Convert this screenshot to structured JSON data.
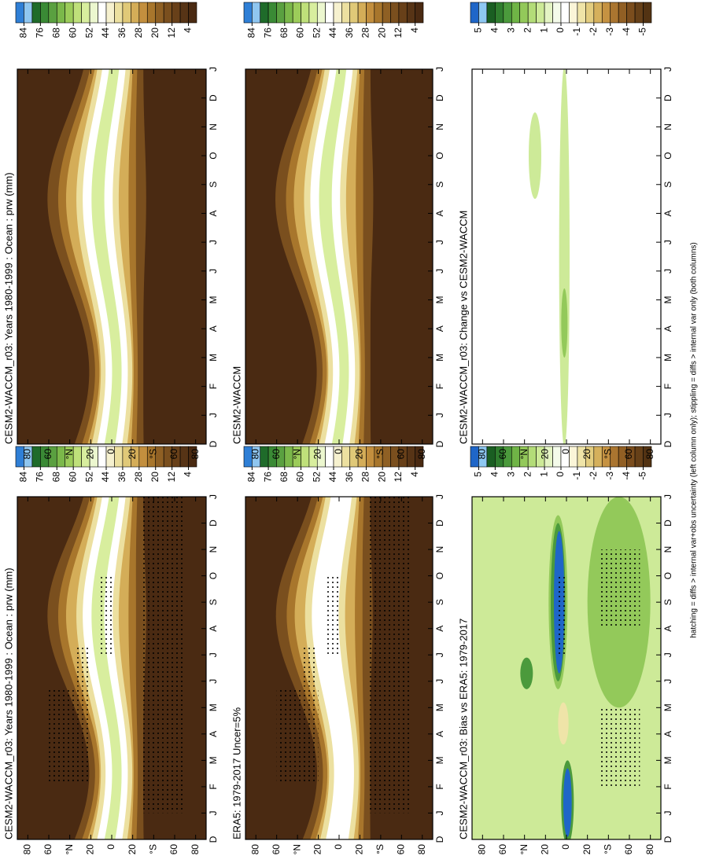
{
  "chart_data": [
    {
      "type": "contour",
      "title": "CESM2-WACCM_r03: Years 1980-1999 : Ocean : prw (mm)",
      "x": [
        "D",
        "J",
        "F",
        "M",
        "A",
        "M",
        "J",
        "J",
        "A",
        "S",
        "O",
        "N",
        "D",
        "J"
      ],
      "ylim": [
        90,
        -90
      ],
      "yticks": [
        80,
        60,
        {
          "value": 40,
          "label": "°N"
        },
        20,
        0,
        {
          "value": -20,
          "label": "20"
        },
        {
          "value": -40,
          "label": "°S"
        },
        {
          "value": -60,
          "label": "60"
        },
        {
          "value": -80,
          "label": "80"
        }
      ],
      "colorbar": {
        "clim": [
          88,
          0
        ],
        "ticks": [
          84,
          76,
          68,
          60,
          52,
          44,
          36,
          28,
          20,
          12,
          4
        ],
        "colors": [
          "#2f7fd6",
          "#8fc6f0",
          "#1f6b2a",
          "#3a8a35",
          "#5aa040",
          "#7bb84a",
          "#9ccc5a",
          "#bfe07a",
          "#d8ee9e",
          "#ecf7cf",
          "#ffffff",
          "#f6f1cf",
          "#ece0a0",
          "#e0c978",
          "#d4ad58",
          "#c38f3e",
          "#a8762c",
          "#8f6024",
          "#7a4f1e",
          "#684019",
          "#573416",
          "#4a2a12"
        ]
      }
    },
    {
      "type": "contour",
      "title": "CESM2-WACCM_r03: Years 1980-1999 : Ocean : prw (mm)",
      "x": [
        "D",
        "J",
        "F",
        "M",
        "A",
        "M",
        "J",
        "J",
        "A",
        "S",
        "O",
        "N",
        "D",
        "J"
      ],
      "ylim": [
        90,
        -90
      ],
      "yticks": [
        80,
        60,
        {
          "value": 40,
          "label": "°N"
        },
        20,
        0,
        {
          "value": -20,
          "label": "20"
        },
        {
          "value": -40,
          "label": "°S"
        },
        {
          "value": -60,
          "label": "60"
        },
        {
          "value": -80,
          "label": "80"
        }
      ],
      "colorbar": {
        "clim": [
          88,
          0
        ],
        "ticks": [
          84,
          76,
          68,
          60,
          52,
          44,
          36,
          28,
          20,
          12,
          4
        ],
        "colors": [
          "#2f7fd6",
          "#8fc6f0",
          "#1f6b2a",
          "#3a8a35",
          "#5aa040",
          "#7bb84a",
          "#9ccc5a",
          "#bfe07a",
          "#d8ee9e",
          "#ecf7cf",
          "#ffffff",
          "#f6f1cf",
          "#ece0a0",
          "#e0c978",
          "#d4ad58",
          "#c38f3e",
          "#a8762c",
          "#8f6024",
          "#7a4f1e",
          "#684019",
          "#573416",
          "#4a2a12"
        ]
      }
    },
    {
      "type": "contour",
      "title": "ERA5: 1979-2017 Uncer=5%",
      "x": [
        "D",
        "J",
        "F",
        "M",
        "A",
        "M",
        "J",
        "J",
        "A",
        "S",
        "O",
        "N",
        "D",
        "J"
      ],
      "ylim": [
        90,
        -90
      ],
      "yticks": [
        80,
        60,
        {
          "value": 40,
          "label": "°N"
        },
        20,
        0,
        {
          "value": -20,
          "label": "20"
        },
        {
          "value": -40,
          "label": "°S"
        },
        {
          "value": -60,
          "label": "60"
        },
        {
          "value": -80,
          "label": "80"
        }
      ],
      "colorbar": {
        "clim": [
          88,
          0
        ],
        "ticks": [
          84,
          76,
          68,
          60,
          52,
          44,
          36,
          28,
          20,
          12,
          4
        ],
        "colors": [
          "#2f7fd6",
          "#8fc6f0",
          "#1f6b2a",
          "#3a8a35",
          "#5aa040",
          "#7bb84a",
          "#9ccc5a",
          "#bfe07a",
          "#d8ee9e",
          "#ecf7cf",
          "#ffffff",
          "#f6f1cf",
          "#ece0a0",
          "#e0c978",
          "#d4ad58",
          "#c38f3e",
          "#a8762c",
          "#8f6024",
          "#7a4f1e",
          "#684019",
          "#573416",
          "#4a2a12"
        ]
      }
    },
    {
      "type": "contour",
      "title": "CESM2-WACCM",
      "x": [
        "D",
        "J",
        "F",
        "M",
        "A",
        "M",
        "J",
        "J",
        "A",
        "S",
        "O",
        "N",
        "D",
        "J"
      ],
      "ylim": [
        90,
        -90
      ],
      "yticks": [
        80,
        60,
        {
          "value": 40,
          "label": "°N"
        },
        20,
        0,
        {
          "value": -20,
          "label": "20"
        },
        {
          "value": -40,
          "label": "°S"
        },
        {
          "value": -60,
          "label": "60"
        },
        {
          "value": -80,
          "label": "80"
        }
      ],
      "colorbar": {
        "clim": [
          88,
          0
        ],
        "ticks": [
          84,
          76,
          68,
          60,
          52,
          44,
          36,
          28,
          20,
          12,
          4
        ],
        "colors": [
          "#2f7fd6",
          "#8fc6f0",
          "#1f6b2a",
          "#3a8a35",
          "#5aa040",
          "#7bb84a",
          "#9ccc5a",
          "#bfe07a",
          "#d8ee9e",
          "#ecf7cf",
          "#ffffff",
          "#f6f1cf",
          "#ece0a0",
          "#e0c978",
          "#d4ad58",
          "#c38f3e",
          "#a8762c",
          "#8f6024",
          "#7a4f1e",
          "#684019",
          "#573416",
          "#4a2a12"
        ]
      }
    },
    {
      "type": "contour",
      "title": "CESM2-WACCM_r03: Bias vs ERA5: 1979-2017",
      "x": [
        "D",
        "J",
        "F",
        "M",
        "A",
        "M",
        "J",
        "J",
        "A",
        "S",
        "O",
        "N",
        "D",
        "J"
      ],
      "ylim": [
        90,
        -90
      ],
      "yticks": [
        80,
        60,
        {
          "value": 40,
          "label": "°N"
        },
        20,
        0,
        {
          "value": -20,
          "label": "20"
        },
        {
          "value": -40,
          "label": "°S"
        },
        {
          "value": -60,
          "label": "60"
        },
        {
          "value": -80,
          "label": "80"
        }
      ],
      "colorbar": {
        "clim": [
          5.5,
          -5.5
        ],
        "ticks": [
          5,
          4,
          3,
          2,
          1,
          0,
          -1,
          -2,
          -3,
          -4,
          -5
        ],
        "colors": [
          "#1f66c8",
          "#8ec8f2",
          "#1a5e22",
          "#2f7d2e",
          "#4b9a3c",
          "#6fb446",
          "#93c95a",
          "#b3dc78",
          "#cdea98",
          "#e4f4c4",
          "#f4fbea",
          "#ffffff",
          "#fbf5d8",
          "#efe4a8",
          "#e3cd80",
          "#d5b05c",
          "#c59242",
          "#aa7530",
          "#915f24",
          "#7b4d1d",
          "#664018",
          "#533313"
        ]
      }
    },
    {
      "type": "contour",
      "title": "CESM2-WACCM_r03: Change vs CESM2-WACCM",
      "x": [
        "D",
        "J",
        "F",
        "M",
        "A",
        "M",
        "J",
        "J",
        "A",
        "S",
        "O",
        "N",
        "D",
        "J"
      ],
      "ylim": [
        90,
        -90
      ],
      "yticks": [
        80,
        60,
        {
          "value": 40,
          "label": "°N"
        },
        20,
        0,
        {
          "value": -20,
          "label": "20"
        },
        {
          "value": -40,
          "label": "°S"
        },
        {
          "value": -60,
          "label": "60"
        },
        {
          "value": -80,
          "label": "80"
        }
      ],
      "colorbar": {
        "clim": [
          5.5,
          -5.5
        ],
        "ticks": [
          5,
          4,
          3,
          2,
          1,
          0,
          -1,
          -2,
          -3,
          -4,
          -5
        ],
        "colors": [
          "#1f66c8",
          "#8ec8f2",
          "#1a5e22",
          "#2f7d2e",
          "#4b9a3c",
          "#6fb446",
          "#93c95a",
          "#b3dc78",
          "#cdea98",
          "#e4f4c4",
          "#f4fbea",
          "#ffffff",
          "#fbf5d8",
          "#efe4a8",
          "#e3cd80",
          "#d5b05c",
          "#c59242",
          "#aa7530",
          "#915f24",
          "#7b4d1d",
          "#664018",
          "#533313"
        ]
      }
    }
  ],
  "footnote": "hatching = diffs > internal var+obs uncertainty (left column only); stippling = diffs > internal var only (both columns)"
}
